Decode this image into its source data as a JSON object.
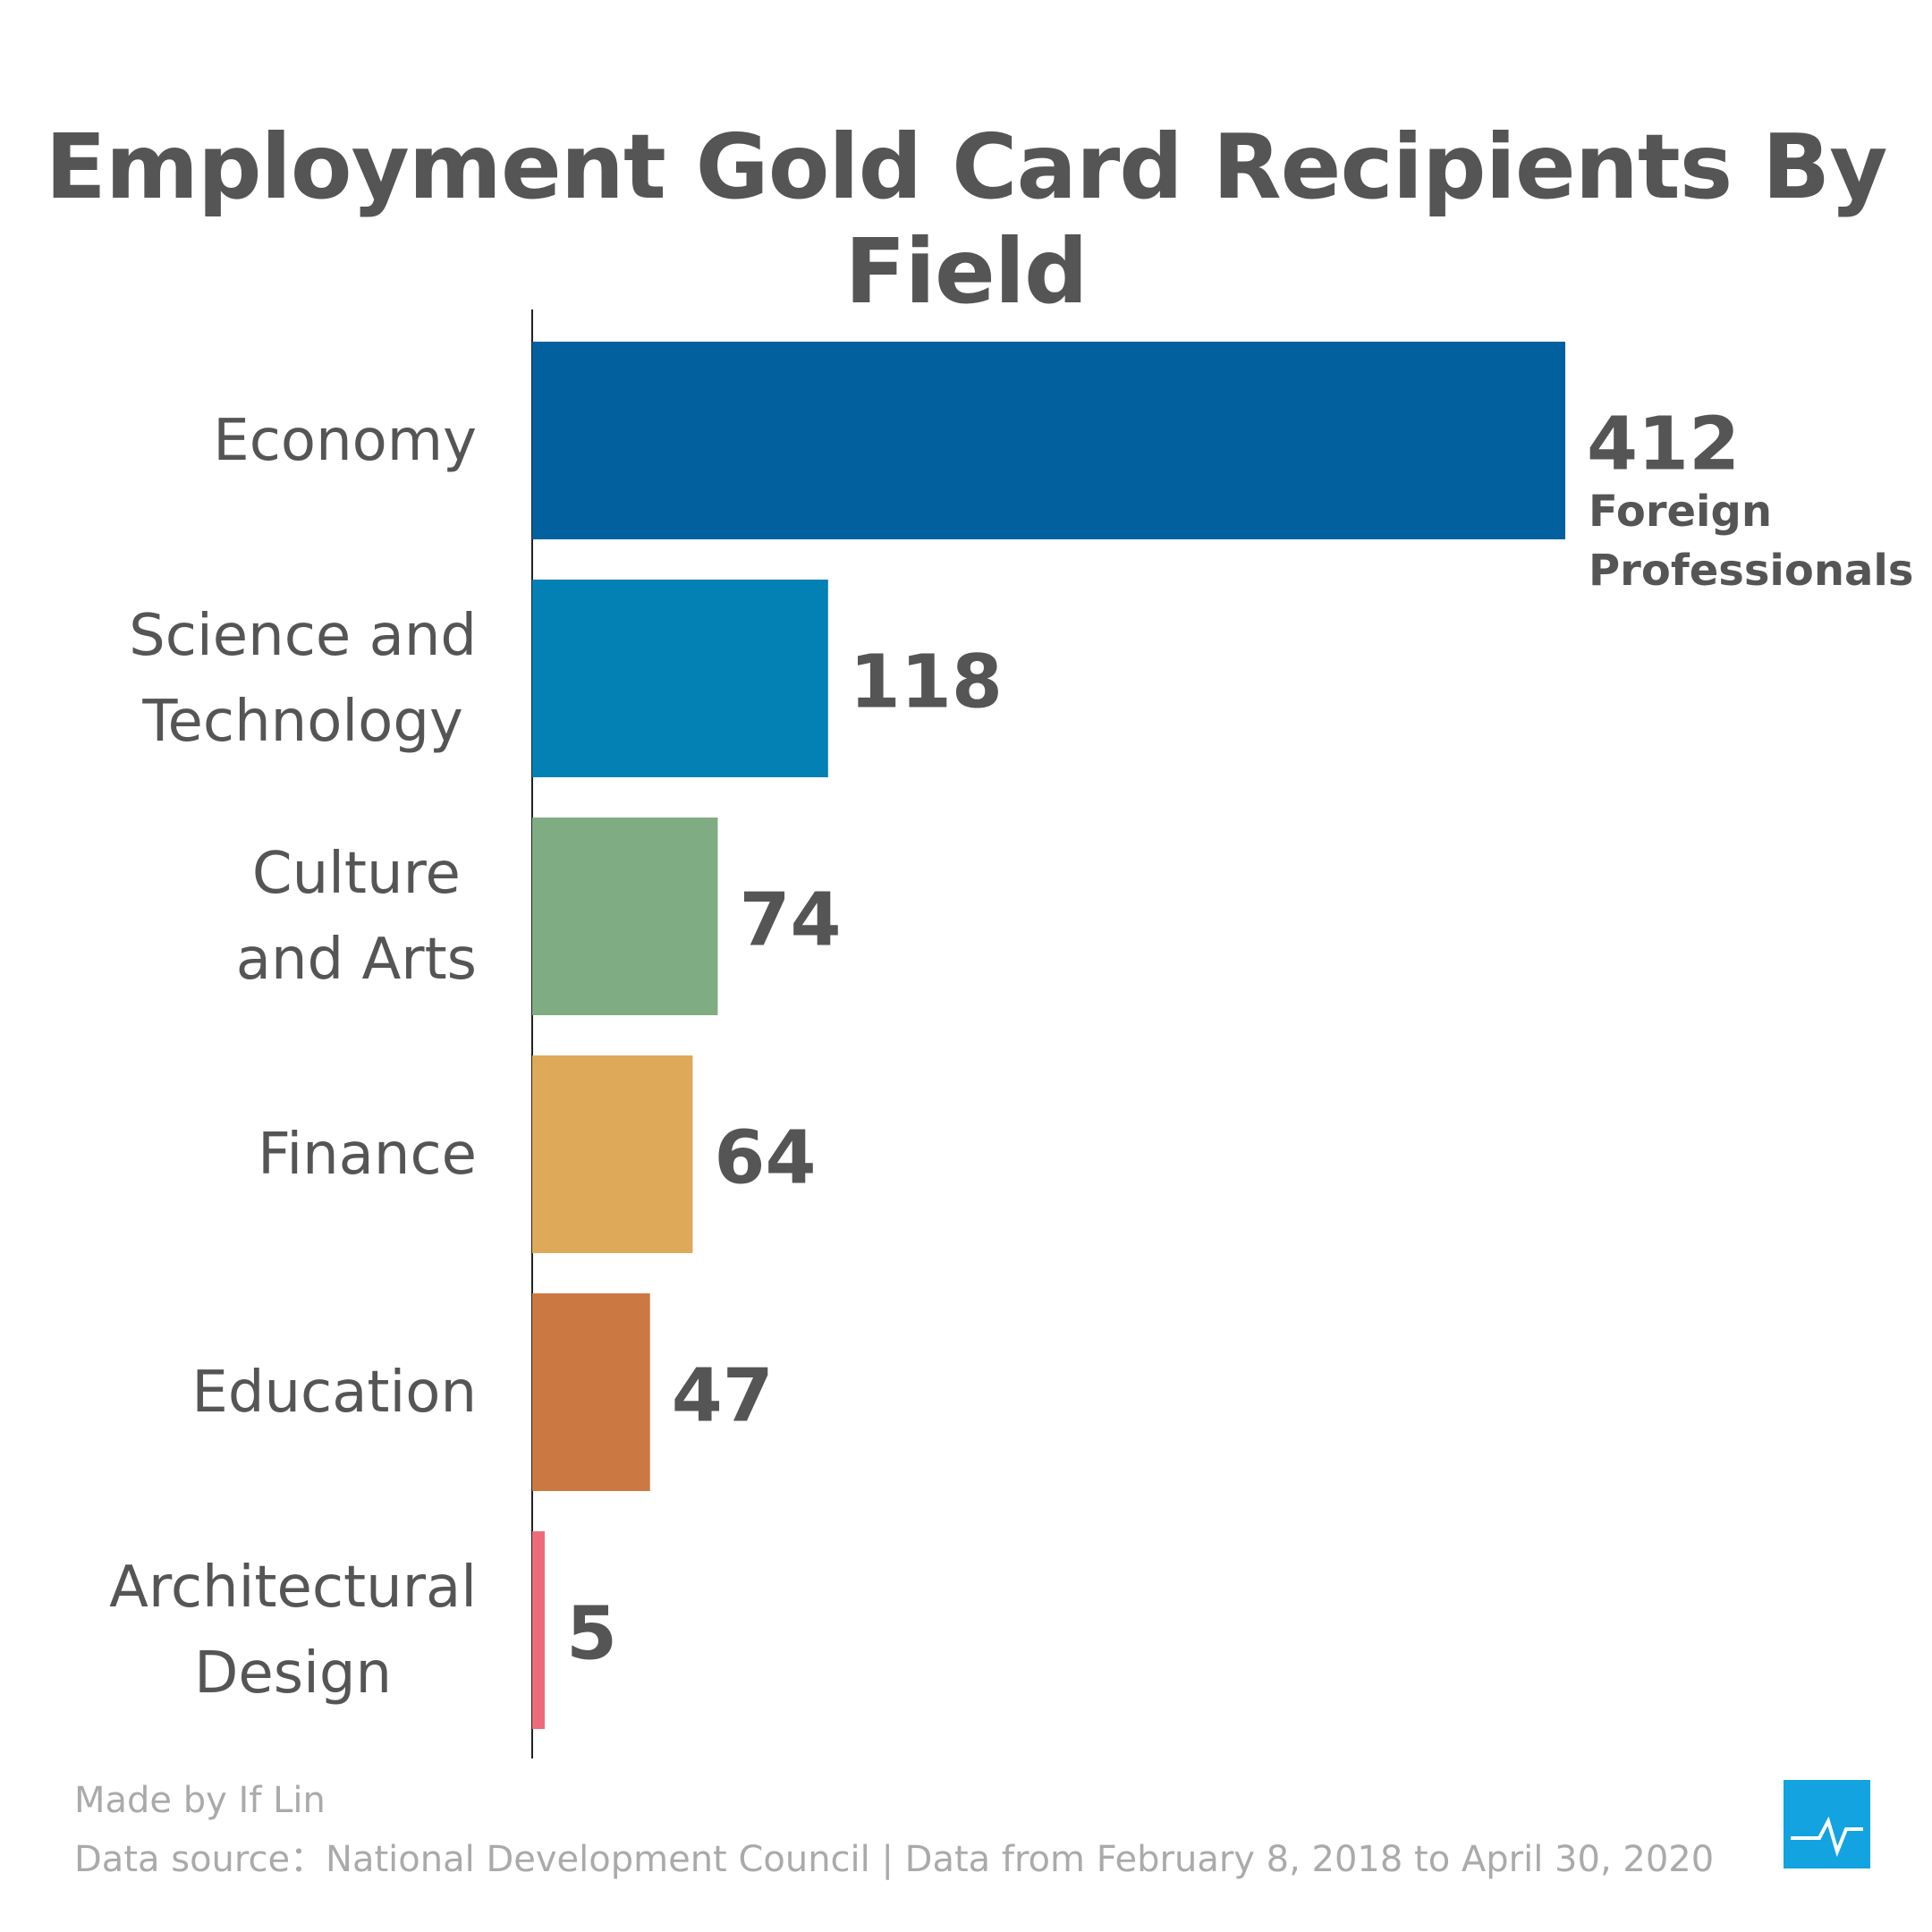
{
  "chart_data": {
    "type": "bar",
    "orientation": "horizontal",
    "title": "Employment Gold Card Recipients By Field",
    "categories": [
      "Economy",
      "Science and\nTechnology",
      "Culture\nand Arts",
      "Finance",
      "Education",
      "Architectural\nDesign"
    ],
    "values": [
      412,
      118,
      74,
      64,
      47,
      5
    ],
    "colors": [
      "#03609e",
      "#0380b4",
      "#7fac83",
      "#dfa95a",
      "#cc7843",
      "#ed6b7a"
    ],
    "annotation": "Foreign\nProfessionals"
  },
  "footer": {
    "credit": "Made by If Lin",
    "source": "Data source：National Development Council | Data from February 8, 2018 to April 30, 2020"
  }
}
